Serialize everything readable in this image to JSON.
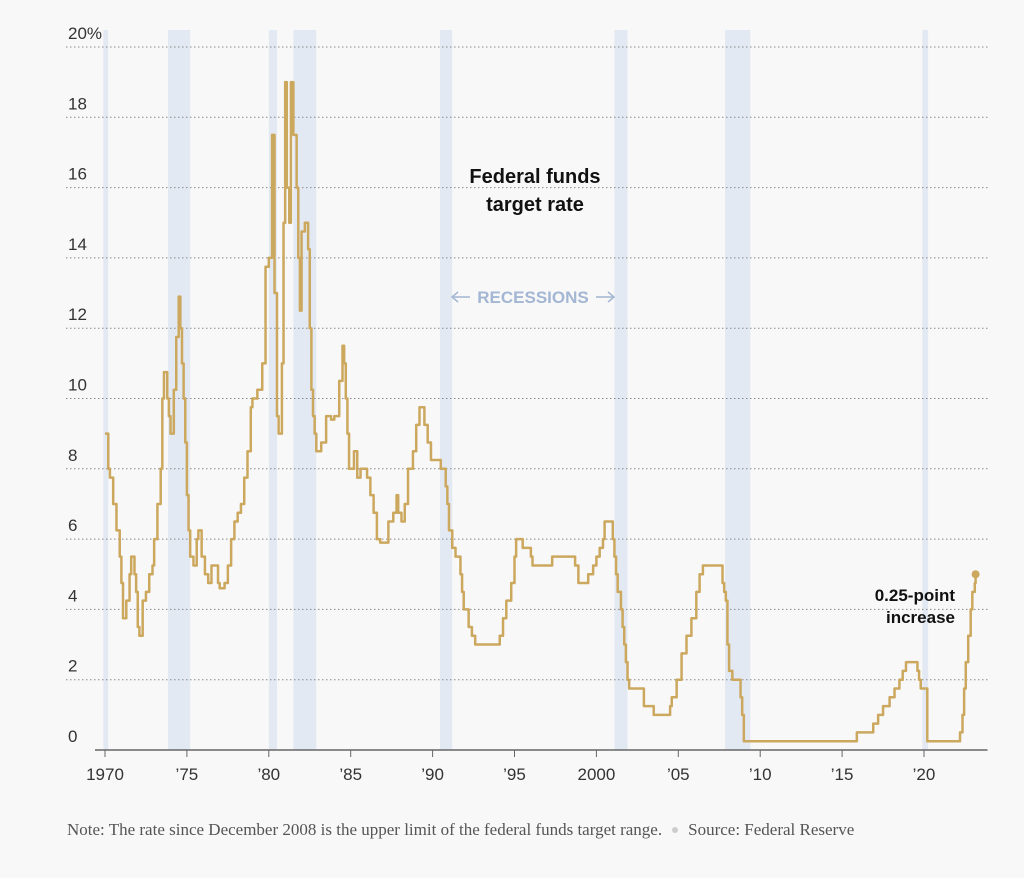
{
  "chart_data": {
    "type": "line",
    "step": true,
    "color": "#cca85f",
    "recession_color": "#e3e9f2",
    "xlim": [
      1969,
      2024
    ],
    "ylim": [
      0,
      20
    ],
    "xticks": [
      1970,
      {
        "value": 1975,
        "label": "’75"
      },
      {
        "value": 1980,
        "label": "’80"
      },
      {
        "value": 1985,
        "label": "’85"
      },
      {
        "value": 1990,
        "label": "’90"
      },
      {
        "value": 1995,
        "label": "’95"
      },
      2000,
      {
        "value": 2005,
        "label": "’05"
      },
      {
        "value": 2010,
        "label": "’10"
      },
      {
        "value": 2015,
        "label": "’15"
      },
      {
        "value": 2020,
        "label": "’20"
      }
    ],
    "yticks": [
      0,
      2,
      4,
      6,
      8,
      10,
      12,
      14,
      16,
      18,
      {
        "value": 20,
        "label": "20%"
      }
    ],
    "grid": true,
    "series_label": [
      "Federal funds",
      "target rate"
    ],
    "recessions_label": "RECESSIONS",
    "recessions": [
      [
        1969.9,
        1970.2
      ],
      [
        1973.85,
        1975.2
      ],
      [
        1980.0,
        1980.5
      ],
      [
        1981.5,
        1982.9
      ],
      [
        1990.45,
        1991.2
      ],
      [
        2001.1,
        2001.9
      ],
      [
        2007.85,
        2009.4
      ],
      [
        2019.9,
        2020.25
      ]
    ],
    "end_label": [
      "0.25-point",
      "increase"
    ],
    "note": "Note: The rate since December 2008 is the upper limit of the federal funds target range.",
    "source": "Source: Federal Reserve",
    "x": [
      1970.0,
      1970.2,
      1970.3,
      1970.5,
      1970.7,
      1970.9,
      1971.0,
      1971.1,
      1971.3,
      1971.5,
      1971.6,
      1971.8,
      1971.9,
      1972.0,
      1972.1,
      1972.3,
      1972.5,
      1972.7,
      1972.9,
      1973.0,
      1973.2,
      1973.4,
      1973.5,
      1973.6,
      1973.8,
      1973.9,
      1974.0,
      1974.2,
      1974.35,
      1974.5,
      1974.6,
      1974.7,
      1974.8,
      1974.9,
      1975.0,
      1975.1,
      1975.2,
      1975.4,
      1975.6,
      1975.7,
      1975.9,
      1976.1,
      1976.3,
      1976.5,
      1976.7,
      1976.9,
      1977.0,
      1977.3,
      1977.5,
      1977.7,
      1977.9,
      1978.1,
      1978.3,
      1978.5,
      1978.7,
      1978.9,
      1979.0,
      1979.3,
      1979.6,
      1979.8,
      1980.0,
      1980.2,
      1980.35,
      1980.5,
      1980.6,
      1980.8,
      1980.9,
      1981.0,
      1981.1,
      1981.25,
      1981.35,
      1981.5,
      1981.7,
      1981.8,
      1981.9,
      1982.0,
      1982.2,
      1982.4,
      1982.5,
      1982.6,
      1982.7,
      1982.8,
      1982.9,
      1983.2,
      1983.5,
      1983.8,
      1984.0,
      1984.3,
      1984.5,
      1984.6,
      1984.7,
      1984.8,
      1984.9,
      1985.2,
      1985.4,
      1985.6,
      1986.0,
      1986.2,
      1986.4,
      1986.6,
      1986.8,
      1987.3,
      1987.6,
      1987.8,
      1987.9,
      1988.1,
      1988.3,
      1988.5,
      1988.8,
      1989.0,
      1989.2,
      1989.5,
      1989.7,
      1989.9,
      1990.5,
      1990.8,
      1990.9,
      1991.0,
      1991.2,
      1991.4,
      1991.7,
      1991.8,
      1991.9,
      1992.2,
      1992.4,
      1992.6,
      1994.1,
      1994.3,
      1994.5,
      1994.8,
      1995.0,
      1995.1,
      1995.5,
      1996.0,
      1996.1,
      1997.3,
      1998.7,
      1998.9,
      1999.5,
      1999.8,
      2000.0,
      2000.2,
      2000.4,
      2000.5,
      2001.0,
      2001.1,
      2001.2,
      2001.3,
      2001.5,
      2001.6,
      2001.7,
      2001.8,
      2001.9,
      2002.0,
      2002.9,
      2003.5,
      2004.5,
      2004.6,
      2004.9,
      2005.2,
      2005.5,
      2005.8,
      2006.1,
      2006.3,
      2006.5,
      2007.7,
      2007.8,
      2007.9,
      2008.0,
      2008.1,
      2008.3,
      2008.8,
      2008.9,
      2009.0,
      2015.9,
      2016.9,
      2017.2,
      2017.5,
      2017.9,
      2018.2,
      2018.5,
      2018.7,
      2018.9,
      2019.6,
      2019.7,
      2019.8,
      2020.2,
      2022.2,
      2022.35,
      2022.45,
      2022.55,
      2022.7,
      2022.85,
      2022.95,
      2023.1,
      2023.15
    ],
    "values": [
      9.0,
      8.0,
      7.75,
      7.0,
      6.25,
      5.5,
      4.75,
      3.75,
      4.25,
      5.0,
      5.5,
      5.0,
      4.5,
      3.5,
      3.25,
      4.25,
      4.5,
      5.0,
      5.25,
      6.0,
      7.0,
      8.0,
      10.0,
      10.75,
      10.0,
      9.5,
      9.0,
      10.25,
      11.75,
      12.9,
      12.0,
      11.0,
      10.0,
      8.75,
      7.25,
      6.25,
      5.5,
      5.25,
      6.0,
      6.25,
      5.5,
      5.0,
      4.75,
      5.25,
      5.25,
      4.75,
      4.6,
      4.75,
      5.25,
      6.0,
      6.5,
      6.75,
      7.0,
      7.75,
      8.5,
      9.75,
      10.0,
      10.25,
      11.0,
      13.75,
      14.0,
      17.5,
      13.0,
      9.5,
      9.0,
      11.0,
      15.0,
      19.0,
      16.0,
      15.0,
      19.0,
      17.5,
      16.0,
      14.0,
      12.5,
      14.75,
      15.0,
      14.25,
      12.0,
      10.25,
      9.5,
      9.0,
      8.5,
      8.75,
      9.5,
      9.4,
      9.5,
      10.5,
      11.5,
      11.0,
      10.0,
      9.0,
      8.0,
      8.5,
      7.75,
      8.0,
      7.75,
      7.25,
      6.75,
      6.0,
      5.9,
      6.5,
      6.75,
      7.25,
      6.75,
      6.5,
      7.0,
      8.0,
      8.5,
      9.25,
      9.75,
      9.25,
      8.75,
      8.25,
      8.0,
      7.5,
      7.0,
      6.25,
      5.75,
      5.5,
      5.0,
      4.5,
      4.0,
      3.5,
      3.25,
      3.0,
      3.25,
      3.75,
      4.25,
      4.75,
      5.5,
      6.0,
      5.75,
      5.5,
      5.25,
      5.5,
      5.25,
      4.75,
      5.0,
      5.25,
      5.5,
      5.75,
      6.0,
      6.5,
      6.0,
      5.5,
      5.0,
      4.5,
      4.0,
      3.5,
      3.0,
      2.5,
      2.0,
      1.75,
      1.25,
      1.0,
      1.25,
      1.5,
      2.0,
      2.75,
      3.25,
      3.75,
      4.5,
      5.0,
      5.25,
      4.75,
      4.5,
      4.25,
      3.0,
      2.25,
      2.0,
      1.5,
      1.0,
      0.25,
      0.5,
      0.75,
      1.0,
      1.25,
      1.5,
      1.75,
      2.0,
      2.25,
      2.5,
      2.25,
      2.0,
      1.75,
      0.25,
      0.5,
      1.0,
      1.75,
      2.5,
      3.25,
      4.0,
      4.5,
      4.75,
      5.0
    ]
  }
}
